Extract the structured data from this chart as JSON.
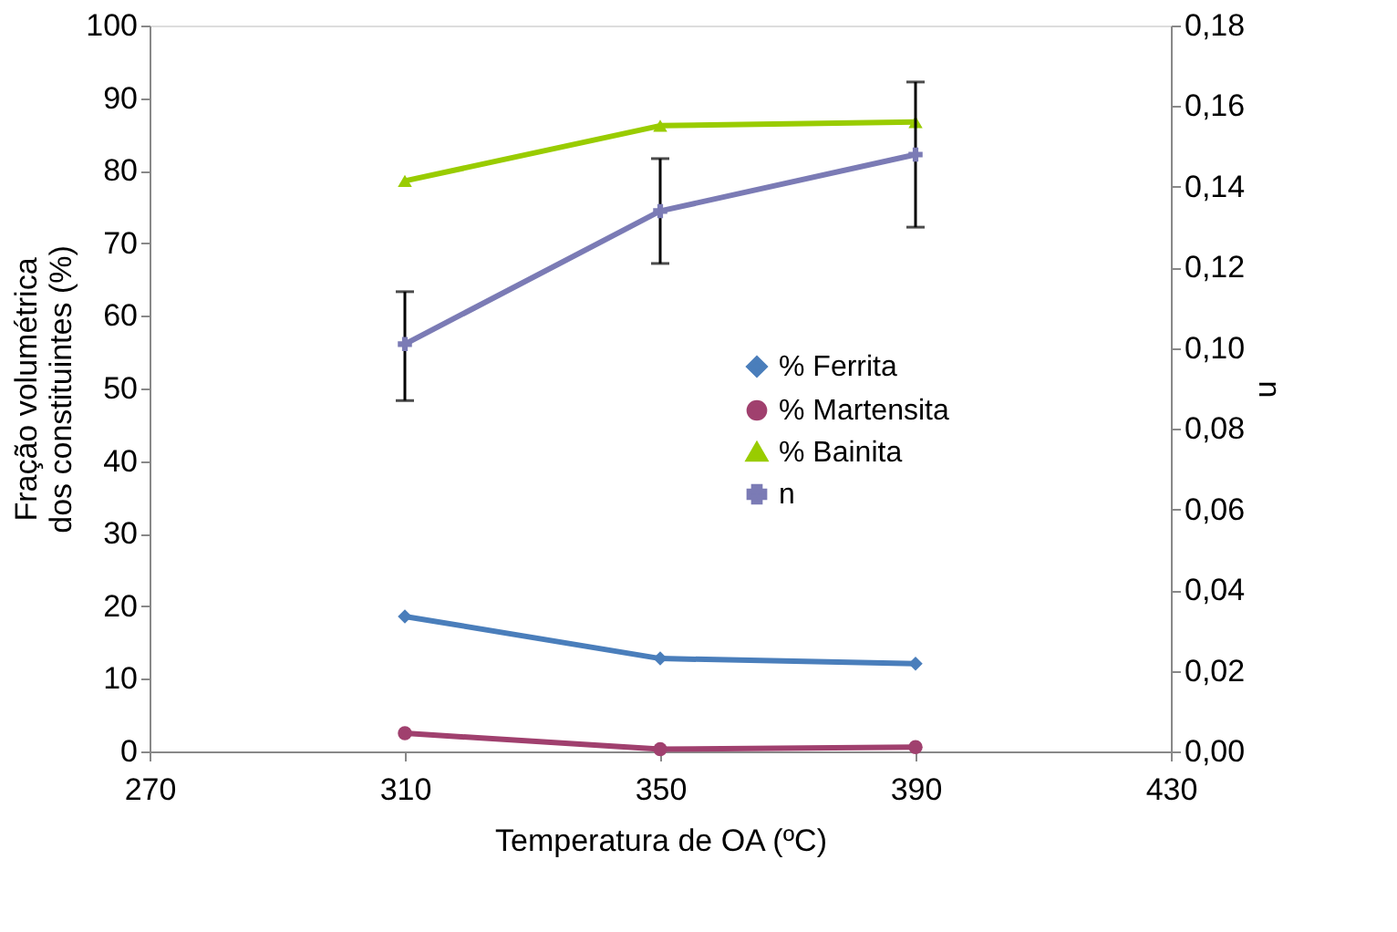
{
  "chart_data": {
    "type": "line",
    "xlabel": "Temperatura de  OA (ºC)",
    "ylabel": "Fração volumétrica\ndos constituintes (%)",
    "y2label": "n",
    "x": [
      310,
      350,
      390
    ],
    "series": [
      {
        "name": "% Ferrita",
        "color": "#4a7ebb",
        "marker": "diamond",
        "values": [
          18.6,
          12.8,
          12.1
        ]
      },
      {
        "name": "% Martensita",
        "color": "#a0406e",
        "marker": "circle",
        "values": [
          2.5,
          0.3,
          0.6
        ]
      },
      {
        "name": "% Bainita",
        "color": "#99cc00",
        "marker": "triangle",
        "values": [
          78.6,
          86.2,
          86.7
        ]
      },
      {
        "name": "n",
        "color": "#7b7bb5",
        "marker": "cross",
        "axis": "y2",
        "values": [
          0.101,
          0.134,
          0.148
        ],
        "errors": [
          [
            0.087,
            0.114
          ],
          [
            0.121,
            0.147
          ],
          [
            0.13,
            0.166
          ]
        ]
      }
    ],
    "xlim": [
      270,
      430
    ],
    "xticks": [
      270,
      310,
      350,
      390,
      430
    ],
    "ylim": [
      0,
      100
    ],
    "yticks": [
      0,
      10,
      20,
      30,
      40,
      50,
      60,
      70,
      80,
      90,
      100
    ],
    "y2lim": [
      0,
      0.18
    ],
    "y2ticks": [
      {
        "value": 0,
        "label": "0,00"
      },
      {
        "value": 0.02,
        "label": "0,02"
      },
      {
        "value": 0.04,
        "label": "0,04"
      },
      {
        "value": 0.06,
        "label": "0,06"
      },
      {
        "value": 0.08,
        "label": "0,08"
      },
      {
        "value": 0.1,
        "label": "0,10"
      },
      {
        "value": 0.12,
        "label": "0,12"
      },
      {
        "value": 0.14,
        "label": "0,14"
      },
      {
        "value": 0.16,
        "label": "0,16"
      },
      {
        "value": 0.18,
        "label": "0,18"
      }
    ],
    "grid": false,
    "legend": "right"
  }
}
